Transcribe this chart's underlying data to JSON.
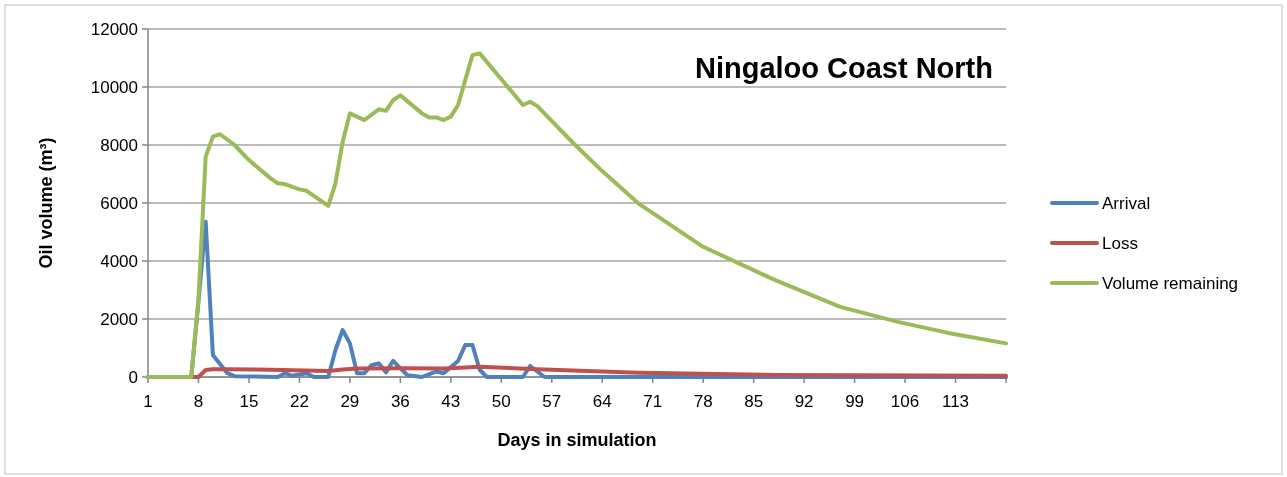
{
  "chart_data": {
    "type": "line",
    "title": "Ningaloo Coast North",
    "xlabel": "Days in simulation",
    "ylabel": "Oil volume (m³)",
    "xlim": [
      1,
      120
    ],
    "xticks": [
      1,
      8,
      15,
      22,
      29,
      36,
      43,
      50,
      57,
      64,
      71,
      78,
      85,
      92,
      99,
      106,
      113,
      {
        "value": 120,
        "label": null
      }
    ],
    "ylim": [
      0,
      12000
    ],
    "yticks": [
      0,
      2000,
      4000,
      6000,
      8000,
      10000,
      12000
    ],
    "grid": "y",
    "legend": "right",
    "marker": "none",
    "line_style": "solid",
    "series": [
      {
        "name": "Arrival",
        "color": "#4f81bd",
        "x": [
          1,
          7,
          8,
          9,
          10,
          12,
          13,
          19,
          20,
          21,
          23,
          24,
          26,
          27,
          28,
          29,
          30,
          31,
          32,
          33,
          34,
          35,
          36,
          37,
          39,
          41,
          42,
          44,
          45,
          46,
          47,
          48,
          53,
          54,
          56,
          120
        ],
        "values": [
          0,
          0,
          2600,
          5350,
          760,
          130,
          30,
          0,
          130,
          40,
          130,
          0,
          0,
          930,
          1620,
          1160,
          130,
          130,
          410,
          470,
          160,
          560,
          300,
          60,
          0,
          190,
          130,
          550,
          1100,
          1100,
          250,
          0,
          0,
          380,
          0,
          0
        ]
      },
      {
        "name": "Loss",
        "color": "#c0504d",
        "x": [
          1,
          7,
          8,
          9,
          10,
          12,
          18,
          26,
          28,
          30,
          36,
          42,
          45,
          47,
          55,
          69,
          88,
          120
        ],
        "values": [
          0,
          0,
          0,
          240,
          270,
          270,
          250,
          210,
          260,
          290,
          300,
          290,
          330,
          355,
          270,
          150,
          70,
          40
        ]
      },
      {
        "name": "Volume remaining",
        "color": "#9bbb59",
        "x": [
          1,
          7,
          8,
          9,
          10,
          11,
          13,
          15,
          18,
          19,
          20,
          22,
          23,
          26,
          27,
          28,
          29,
          31,
          33,
          34,
          35,
          36,
          39,
          40,
          41,
          42,
          43,
          44,
          46,
          47,
          53,
          54,
          55,
          60,
          64,
          69,
          78,
          88,
          97,
          105,
          112,
          120
        ],
        "values": [
          0,
          0,
          2700,
          7600,
          8290,
          8370,
          8000,
          7480,
          6850,
          6680,
          6650,
          6470,
          6420,
          5900,
          6680,
          8110,
          9090,
          8860,
          9230,
          9180,
          9550,
          9710,
          9090,
          8950,
          8950,
          8860,
          8980,
          9380,
          11100,
          11160,
          9380,
          9490,
          9340,
          8060,
          7100,
          5990,
          4490,
          3340,
          2420,
          1900,
          1520,
          1160
        ]
      }
    ]
  }
}
